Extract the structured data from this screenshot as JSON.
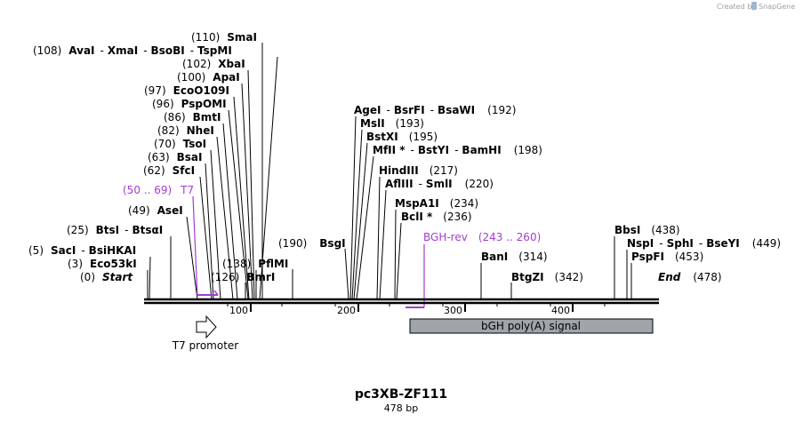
{
  "credit": {
    "prefix": "Created by",
    "brand": "SnapGene"
  },
  "plasmid": {
    "name": "pc3XB-ZF111",
    "size_label": "478 bp",
    "length": 478
  },
  "ticks": [
    100,
    200,
    300,
    400
  ],
  "sites": [
    {
      "pos": "(110)",
      "name": "SmaI",
      "bp": 111
    },
    {
      "pos": "(108)",
      "name": "AvaI",
      "extra": [
        "XmaI",
        "BsoBI",
        "TspMI"
      ],
      "bp": 109
    },
    {
      "pos": "(102)",
      "name": "XbaI",
      "bp": 103
    },
    {
      "pos": "(100)",
      "name": "ApaI",
      "bp": 101
    },
    {
      "pos": "(97)",
      "name": "EcoO109I",
      "bp": 98
    },
    {
      "pos": "(96)",
      "name": "PspOMI",
      "bp": 97
    },
    {
      "pos": "(86)",
      "name": "BmtI",
      "bp": 87
    },
    {
      "pos": "(82)",
      "name": "NheI",
      "bp": 83
    },
    {
      "pos": "(70)",
      "name": "TsoI",
      "bp": 71
    },
    {
      "pos": "(63)",
      "name": "BsaI",
      "bp": 64
    },
    {
      "pos": "(62)",
      "name": "SfcI",
      "bp": 63
    },
    {
      "pos": "(49)",
      "name": "AseI",
      "bp": 50
    },
    {
      "pos": "(25)",
      "name": "BtsI",
      "extra": [
        "BtsαI"
      ],
      "bp": 26
    },
    {
      "pos": "(5)",
      "name": "SacI",
      "extra": [
        "BsiHKAI"
      ],
      "bp": 6
    },
    {
      "pos": "(3)",
      "name": "Eco53kI",
      "bp": 4
    },
    {
      "pos": "(0)",
      "name": "Start",
      "italic": true,
      "bp": 0
    },
    {
      "pos": "(138)",
      "name": "PflMI",
      "bp": 139
    },
    {
      "pos": "(126)",
      "name": "BmrI",
      "bp": 127
    },
    {
      "pos": "(190)",
      "name": "BsgI",
      "bp": 191
    },
    {
      "name": "AgeI",
      "extra": [
        "BsrFI",
        "BsaWI"
      ],
      "pos": "(192)",
      "bp": 193
    },
    {
      "name": "MslI",
      "pos": "(193)",
      "bp": 194
    },
    {
      "name": "BstXI",
      "pos": "(195)",
      "bp": 196
    },
    {
      "name": "MfII *",
      "extra": [
        "BstYI",
        "BamHI"
      ],
      "pos": "(198)",
      "bp": 199
    },
    {
      "name": "HindIII",
      "pos": "(217)",
      "bp": 218
    },
    {
      "name": "AflIII",
      "extra": [
        "SmlI"
      ],
      "pos": "(220)",
      "bp": 221
    },
    {
      "name": "MspA1I",
      "pos": "(234)",
      "bp": 235
    },
    {
      "name": "BclI *",
      "pos": "(236)",
      "bp": 237
    },
    {
      "name": "BanI",
      "pos": "(314)",
      "bp": 315
    },
    {
      "name": "BtgZI",
      "pos": "(342)",
      "bp": 343
    },
    {
      "name": "BbsI",
      "pos": "(438)",
      "bp": 439
    },
    {
      "name": "NspI",
      "extra": [
        "SphI",
        "BseYI"
      ],
      "pos": "(449)",
      "bp": 450
    },
    {
      "name": "PspFI",
      "pos": "(453)",
      "bp": 454
    },
    {
      "name": "End",
      "italic": true,
      "pos": "(478)",
      "bp": 478
    }
  ],
  "primers": [
    {
      "label": "T7",
      "range": "(50 .. 69)",
      "direction": "forward"
    },
    {
      "label": "BGH-rev",
      "range": "(243 .. 260)",
      "direction": "reverse"
    }
  ],
  "features": [
    {
      "label": "T7 promoter",
      "type": "promoter",
      "start": 49,
      "end": 68
    },
    {
      "label": "bGH poly(A) signal",
      "type": "polyA_signal",
      "start": 248,
      "end": 472
    }
  ],
  "colors": {
    "primer": "#a63bd1",
    "feature_fill": "#a0a5a9",
    "backbone": "#000000"
  }
}
